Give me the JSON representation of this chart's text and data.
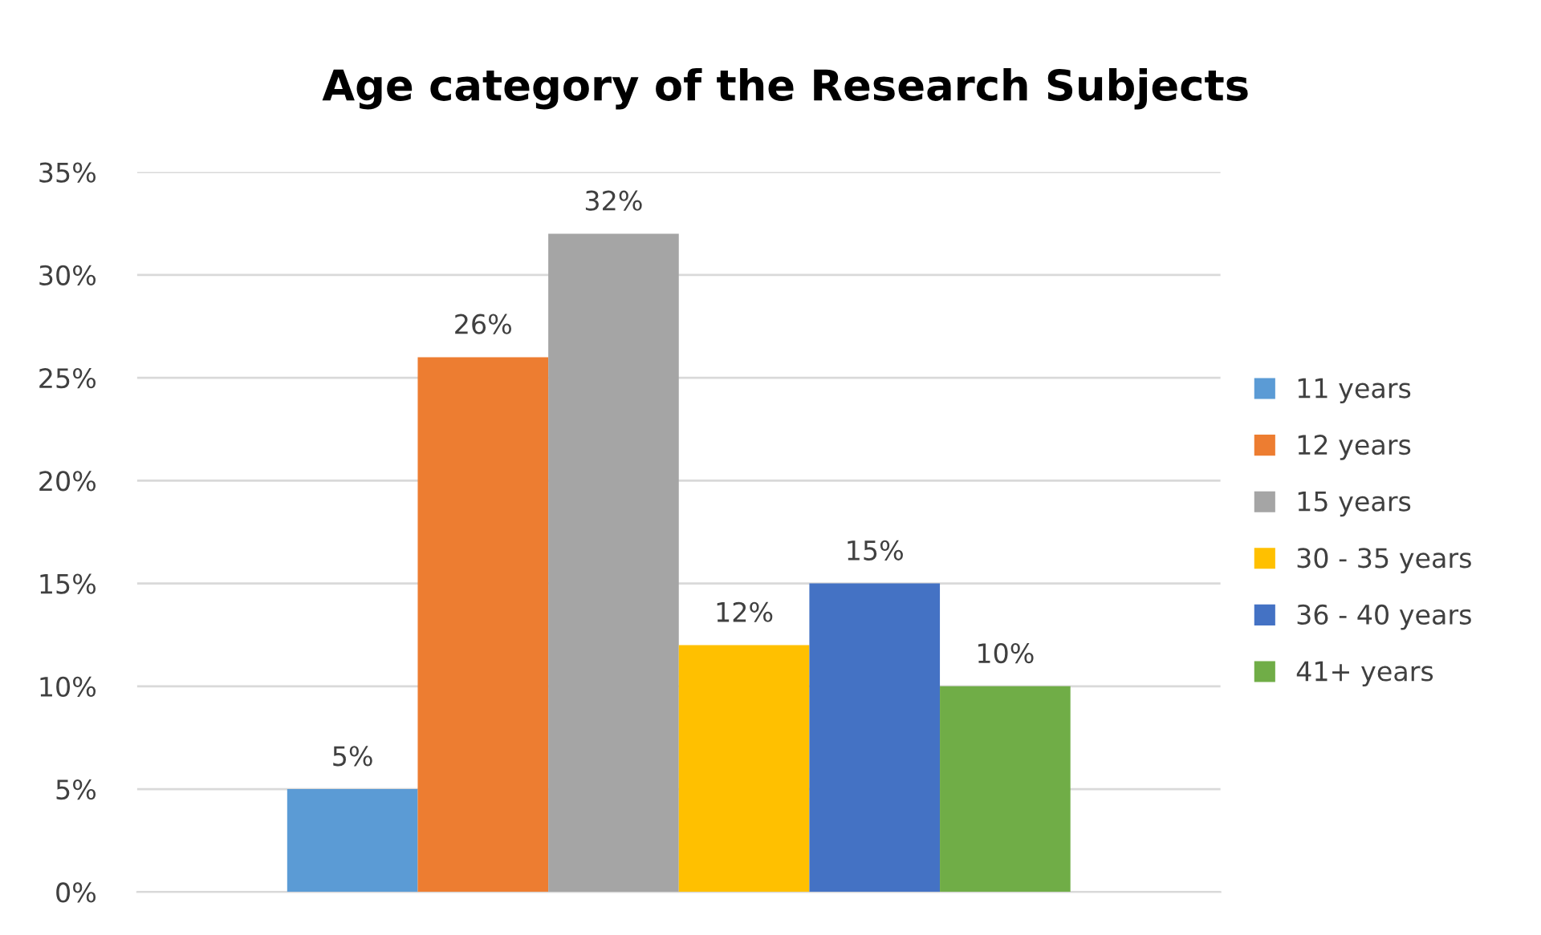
{
  "chart_data": {
    "type": "bar",
    "title": "Age category of the Research Subjects",
    "categories": [
      null
    ],
    "series": [
      {
        "name": "11 years",
        "color": "#5b9bd5",
        "values": [
          5
        ],
        "value_labels": [
          "5%"
        ]
      },
      {
        "name": "12 years",
        "color": "#ed7d31",
        "values": [
          26
        ],
        "value_labels": [
          "26%"
        ]
      },
      {
        "name": "15 years",
        "color": "#a5a5a5",
        "values": [
          32
        ],
        "value_labels": [
          "32%"
        ]
      },
      {
        "name": "30 - 35 years",
        "color": "#ffc000",
        "values": [
          12
        ],
        "value_labels": [
          "12%"
        ]
      },
      {
        "name": "36 - 40 years",
        "color": "#4472c4",
        "values": [
          15
        ],
        "value_labels": [
          "15%"
        ]
      },
      {
        "name": "41+ years",
        "color": "#70ad47",
        "values": [
          10
        ],
        "value_labels": [
          "10%"
        ]
      }
    ],
    "ylim": [
      0,
      35
    ],
    "yticks": [
      {
        "value": 0,
        "label": "0%"
      },
      {
        "value": 5,
        "label": "5%"
      },
      {
        "value": 10,
        "label": "10%"
      },
      {
        "value": 15,
        "label": "15%"
      },
      {
        "value": 20,
        "label": "20%"
      },
      {
        "value": 25,
        "label": "25%"
      },
      {
        "value": 30,
        "label": "30%"
      },
      {
        "value": 35,
        "label": "35%"
      }
    ],
    "grid": "y",
    "legend": "right"
  }
}
